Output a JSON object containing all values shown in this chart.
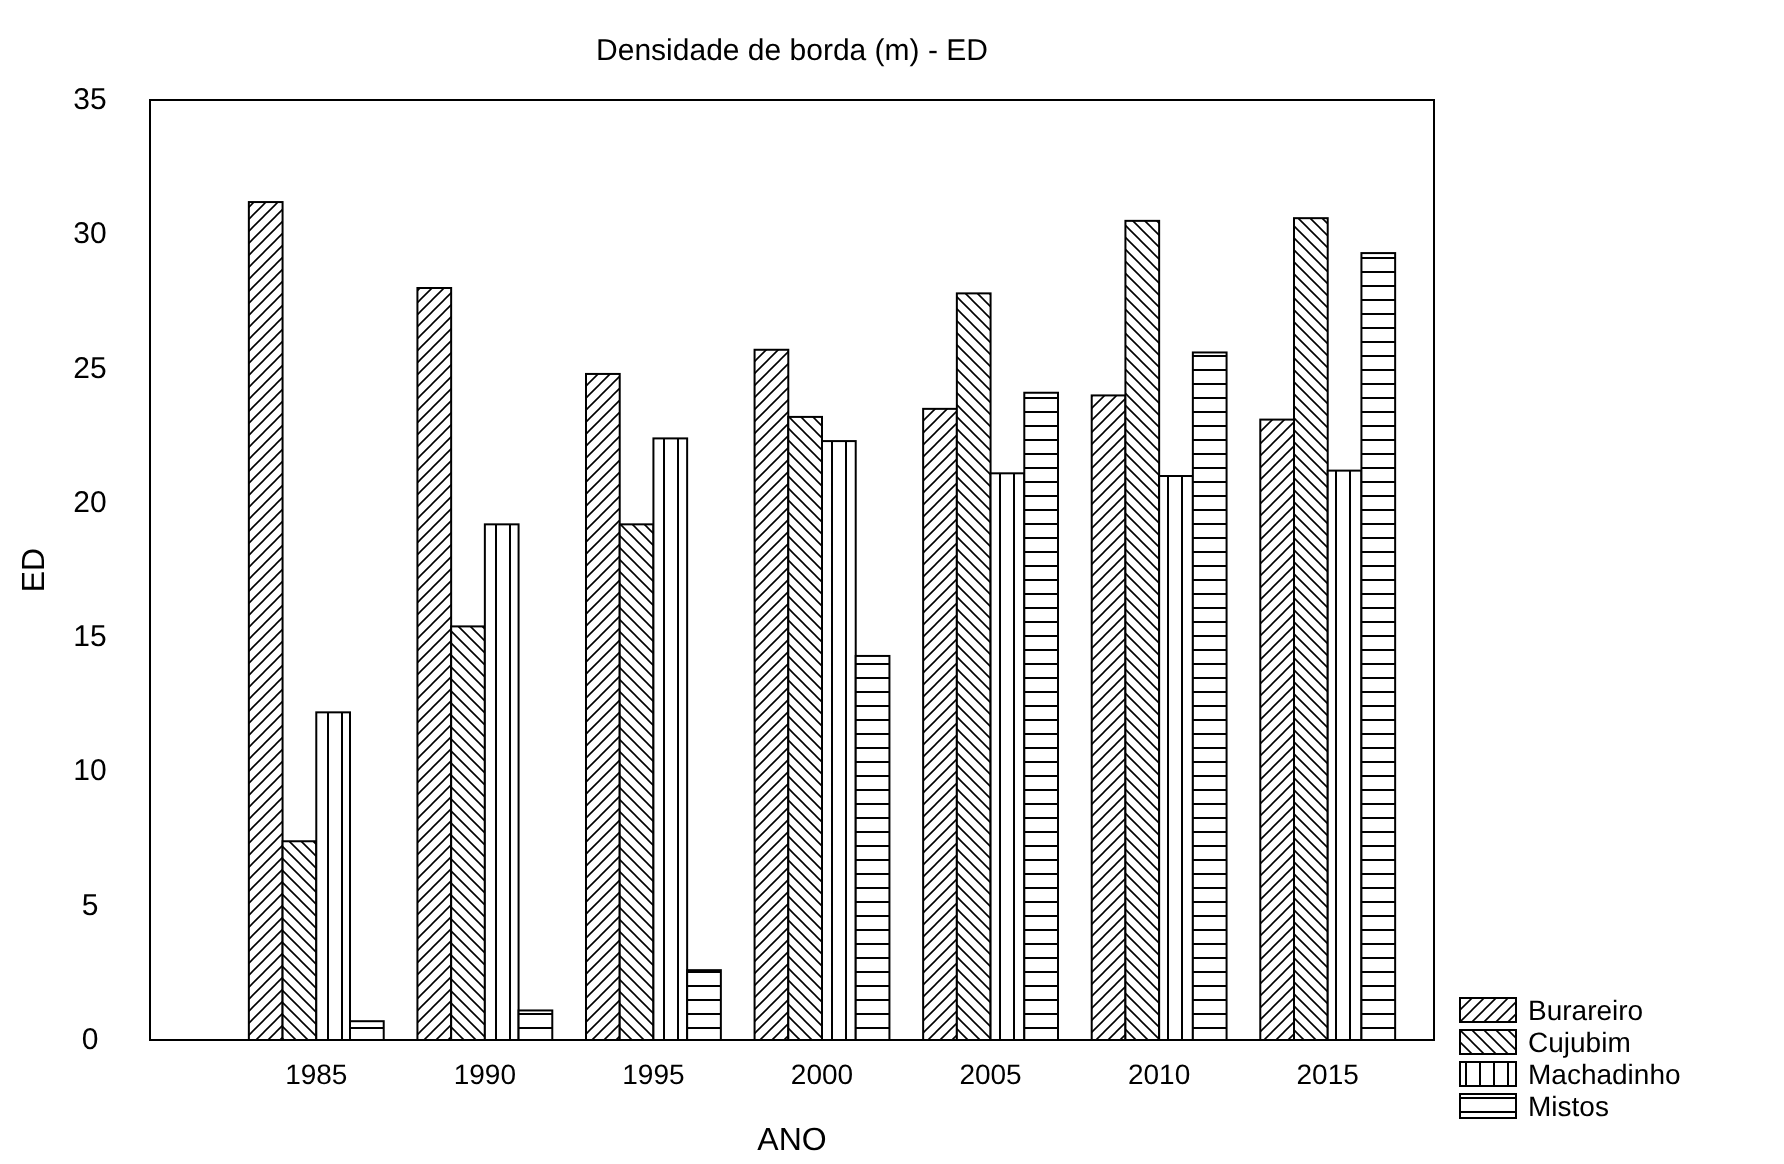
{
  "chart_data": {
    "type": "bar",
    "title": "Densidade de borda (m) - ED",
    "xlabel": "ANO",
    "ylabel": "ED",
    "categories": [
      "1985",
      "1990",
      "1995",
      "2000",
      "2005",
      "2010",
      "2015"
    ],
    "series": [
      {
        "name": "Burareiro",
        "color": "#000000",
        "values": [
          31.2,
          28.0,
          24.8,
          25.7,
          23.5,
          24.0,
          23.1
        ]
      },
      {
        "name": "Cujubim",
        "color": "#000000",
        "values": [
          7.4,
          15.4,
          19.2,
          23.2,
          27.8,
          30.5,
          30.6
        ]
      },
      {
        "name": "Machadinho",
        "color": "#000000",
        "values": [
          12.2,
          19.2,
          22.4,
          22.3,
          21.1,
          21.0,
          21.2
        ]
      },
      {
        "name": "Mistos",
        "color": "#000000",
        "values": [
          0.7,
          1.1,
          2.6,
          14.3,
          24.1,
          25.6,
          29.3
        ]
      }
    ],
    "ylim": [
      0,
      35
    ],
    "yticks": [
      0,
      5,
      10,
      15,
      20,
      25,
      30,
      35
    ],
    "grid": false,
    "legend": "bottom right"
  }
}
